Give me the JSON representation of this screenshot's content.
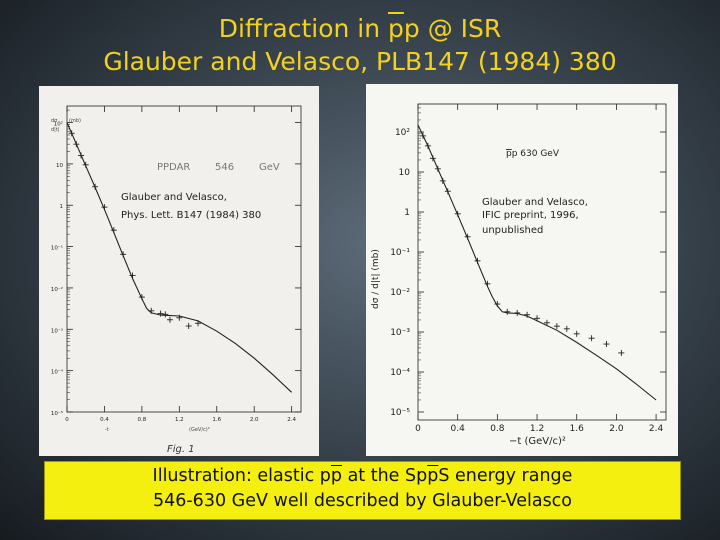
{
  "header": {
    "line1_pre": "Diffraction in ",
    "line1_ov": "p",
    "line1_post": "p @ ISR",
    "line2": "Glauber and Velasco, PLB147 (1984) 380"
  },
  "caption": {
    "line1_a": "Illustration: elastic p",
    "line1_b": "p",
    "line1_c": " at the Sp",
    "line1_d": "p",
    "line1_e": "S energy range",
    "line2": "546-630 GeV well described by Glauber-Velasco"
  },
  "colors": {
    "title": "#f2d21c",
    "caption_bg": "#f5ef0f",
    "ink": "#222222"
  },
  "chart_data": [
    {
      "type": "scatter",
      "title": "",
      "label_left": "PPDAR",
      "label_energy": "546",
      "label_unit": "GeV",
      "annotation1": "Glauber and Velasco,",
      "annotation2": "Phys. Lett. B147 (1984) 380",
      "ylabel_top1": "dσ",
      "ylabel_top2": "d|t|",
      "ylabel_unit": "(mb)",
      "xlabel": "-t",
      "xlabel_unit": "(GeV/c)²",
      "figure_label": "Fig. 1",
      "xticks": [
        "0",
        "0.4",
        "0.8",
        "1.2",
        "1.6",
        "2.0",
        "2.4"
      ],
      "yticks": [
        "10²",
        "10",
        "1",
        "10⁻¹",
        "10⁻²",
        "10⁻³",
        "10⁻⁴",
        "10⁻⁵"
      ],
      "xlim": [
        0,
        2.5
      ],
      "ylim_log10": [
        -5,
        2.4
      ],
      "series": [
        {
          "values": [
            [
              0.0,
              100
            ],
            [
              0.1,
              30
            ],
            [
              0.2,
              9
            ],
            [
              0.3,
              2.7
            ],
            [
              0.4,
              0.8
            ],
            [
              0.5,
              0.22
            ],
            [
              0.6,
              0.06
            ],
            [
              0.7,
              0.017
            ],
            [
              0.8,
              0.0055
            ],
            [
              0.85,
              0.0032
            ],
            [
              0.9,
              0.0025
            ],
            [
              1.0,
              0.0022
            ],
            [
              1.2,
              0.0021
            ],
            [
              1.4,
              0.0016
            ],
            [
              1.6,
              0.0009
            ],
            [
              1.8,
              0.00045
            ],
            [
              2.0,
              0.0002
            ],
            [
              2.2,
              8e-05
            ],
            [
              2.4,
              3e-05
            ]
          ]
        },
        {
          "values": [
            [
              0.05,
              55
            ],
            [
              0.1,
              30
            ],
            [
              0.15,
              16
            ],
            [
              0.2,
              9.5
            ],
            [
              0.3,
              2.8
            ],
            [
              0.4,
              0.9
            ],
            [
              0.5,
              0.25
            ],
            [
              0.6,
              0.065
            ],
            [
              0.7,
              0.02
            ],
            [
              0.8,
              0.006
            ],
            [
              0.9,
              0.0028
            ],
            [
              1.0,
              0.0024
            ],
            [
              1.05,
              0.0023
            ],
            [
              1.1,
              0.0017
            ],
            [
              1.2,
              0.0019
            ],
            [
              1.3,
              0.0012
            ],
            [
              1.4,
              0.0014
            ]
          ]
        }
      ]
    },
    {
      "type": "scatter",
      "title": "",
      "label_ov": "p",
      "label_rest": "p  630  GeV",
      "annotation1": "Glauber and Velasco,",
      "annotation2": "IFIC preprint, 1996,",
      "annotation3": "unpublished",
      "ylabel": "dσ / d|t|  (mb)",
      "xlabel": "−t (GeV/c)²",
      "xticks": [
        "0",
        "0.4",
        "0.8",
        "1.2",
        "1.6",
        "2.0",
        "2.4"
      ],
      "yticks": [
        "10²",
        "10",
        "1",
        "10⁻¹",
        "10⁻²",
        "10⁻³",
        "10⁻⁴",
        "10⁻⁵"
      ],
      "xlim": [
        0,
        2.5
      ],
      "ylim_log10": [
        -5.2,
        2.7
      ],
      "series": [
        {
          "values": [
            [
              0.0,
              150
            ],
            [
              0.1,
              45
            ],
            [
              0.2,
              12
            ],
            [
              0.3,
              3.2
            ],
            [
              0.4,
              0.85
            ],
            [
              0.5,
              0.22
            ],
            [
              0.6,
              0.055
            ],
            [
              0.7,
              0.014
            ],
            [
              0.75,
              0.0075
            ],
            [
              0.8,
              0.0045
            ],
            [
              0.85,
              0.0032
            ],
            [
              0.9,
              0.003
            ],
            [
              1.0,
              0.0029
            ],
            [
              1.1,
              0.0025
            ],
            [
              1.2,
              0.0019
            ],
            [
              1.4,
              0.0011
            ],
            [
              1.6,
              0.00055
            ],
            [
              1.8,
              0.00026
            ],
            [
              2.0,
              0.00012
            ],
            [
              2.2,
              5e-05
            ],
            [
              2.4,
              2e-05
            ]
          ]
        },
        {
          "values": [
            [
              0.05,
              80
            ],
            [
              0.1,
              45
            ],
            [
              0.15,
              22
            ],
            [
              0.2,
              12
            ],
            [
              0.25,
              6
            ],
            [
              0.3,
              3.3
            ],
            [
              0.4,
              0.9
            ],
            [
              0.5,
              0.24
            ],
            [
              0.6,
              0.06
            ],
            [
              0.7,
              0.016
            ],
            [
              0.8,
              0.005
            ],
            [
              0.9,
              0.0032
            ],
            [
              1.0,
              0.003
            ],
            [
              1.1,
              0.0027
            ],
            [
              1.2,
              0.0022
            ],
            [
              1.3,
              0.0017
            ],
            [
              1.4,
              0.0014
            ],
            [
              1.5,
              0.0012
            ],
            [
              1.6,
              0.0009
            ],
            [
              1.75,
              0.0007
            ],
            [
              1.9,
              0.0005
            ],
            [
              2.05,
              0.0003
            ]
          ]
        }
      ]
    }
  ]
}
